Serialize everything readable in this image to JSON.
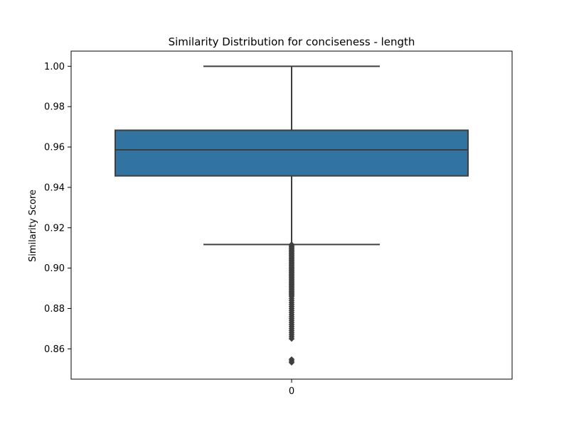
{
  "chart_data": {
    "type": "box",
    "title": "Similarity Distribution for conciseness - length",
    "xlabel": "",
    "ylabel": "Similarity Score",
    "categories": [
      "0"
    ],
    "ylim": [
      0.845,
      1.0075
    ],
    "yticks": [
      0.86,
      0.88,
      0.9,
      0.92,
      0.94,
      0.96,
      0.98,
      1.0
    ],
    "ytick_labels": [
      "0.86",
      "0.88",
      "0.90",
      "0.92",
      "0.94",
      "0.96",
      "0.98",
      "1.00"
    ],
    "grid": false,
    "legend": "none",
    "box": {
      "whisker_low": 0.9117,
      "q1": 0.9457,
      "median": 0.9586,
      "q3": 0.9683,
      "whisker_high": 1.0
    },
    "outliers": [
      0.9117,
      0.9112,
      0.9106,
      0.91,
      0.9094,
      0.9088,
      0.9082,
      0.9076,
      0.907,
      0.9064,
      0.9058,
      0.9052,
      0.9046,
      0.904,
      0.9034,
      0.9028,
      0.9022,
      0.9016,
      0.901,
      0.9004,
      0.8998,
      0.8992,
      0.8986,
      0.898,
      0.8974,
      0.8968,
      0.8962,
      0.8956,
      0.895,
      0.8944,
      0.8938,
      0.8932,
      0.8926,
      0.892,
      0.8914,
      0.8908,
      0.8902,
      0.8896,
      0.889,
      0.8884,
      0.8878,
      0.8872,
      0.8866,
      0.886,
      0.885,
      0.884,
      0.883,
      0.882,
      0.881,
      0.88,
      0.879,
      0.878,
      0.877,
      0.876,
      0.875,
      0.874,
      0.873,
      0.872,
      0.871,
      0.87,
      0.869,
      0.868,
      0.867,
      0.866,
      0.865,
      0.8548,
      0.854,
      0.8532
    ],
    "colors": {
      "box_fill": "#3274a1",
      "line": "#3f3f3f",
      "axis": "#000000"
    }
  }
}
